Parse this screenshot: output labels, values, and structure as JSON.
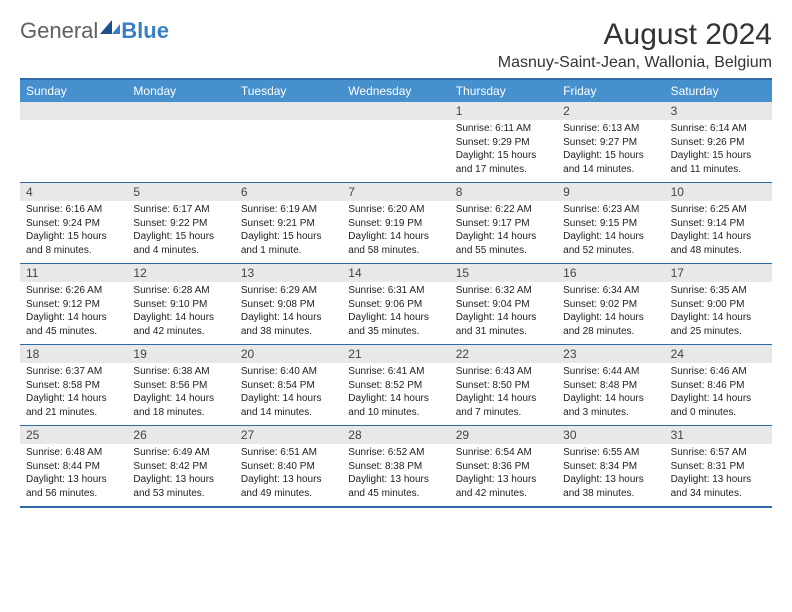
{
  "brand": {
    "part1": "General",
    "part2": "Blue"
  },
  "title": "August 2024",
  "location": "Masnuy-Saint-Jean, Wallonia, Belgium",
  "colors": {
    "header_bg": "#4690ce",
    "border": "#2f6aa8",
    "daynum_bg": "#e8e8e8",
    "text": "#222222"
  },
  "daynames": [
    "Sunday",
    "Monday",
    "Tuesday",
    "Wednesday",
    "Thursday",
    "Friday",
    "Saturday"
  ],
  "weeks": [
    [
      {
        "n": "",
        "sr": "",
        "ss": "",
        "dl": ""
      },
      {
        "n": "",
        "sr": "",
        "ss": "",
        "dl": ""
      },
      {
        "n": "",
        "sr": "",
        "ss": "",
        "dl": ""
      },
      {
        "n": "",
        "sr": "",
        "ss": "",
        "dl": ""
      },
      {
        "n": "1",
        "sr": "Sunrise: 6:11 AM",
        "ss": "Sunset: 9:29 PM",
        "dl": "Daylight: 15 hours and 17 minutes."
      },
      {
        "n": "2",
        "sr": "Sunrise: 6:13 AM",
        "ss": "Sunset: 9:27 PM",
        "dl": "Daylight: 15 hours and 14 minutes."
      },
      {
        "n": "3",
        "sr": "Sunrise: 6:14 AM",
        "ss": "Sunset: 9:26 PM",
        "dl": "Daylight: 15 hours and 11 minutes."
      }
    ],
    [
      {
        "n": "4",
        "sr": "Sunrise: 6:16 AM",
        "ss": "Sunset: 9:24 PM",
        "dl": "Daylight: 15 hours and 8 minutes."
      },
      {
        "n": "5",
        "sr": "Sunrise: 6:17 AM",
        "ss": "Sunset: 9:22 PM",
        "dl": "Daylight: 15 hours and 4 minutes."
      },
      {
        "n": "6",
        "sr": "Sunrise: 6:19 AM",
        "ss": "Sunset: 9:21 PM",
        "dl": "Daylight: 15 hours and 1 minute."
      },
      {
        "n": "7",
        "sr": "Sunrise: 6:20 AM",
        "ss": "Sunset: 9:19 PM",
        "dl": "Daylight: 14 hours and 58 minutes."
      },
      {
        "n": "8",
        "sr": "Sunrise: 6:22 AM",
        "ss": "Sunset: 9:17 PM",
        "dl": "Daylight: 14 hours and 55 minutes."
      },
      {
        "n": "9",
        "sr": "Sunrise: 6:23 AM",
        "ss": "Sunset: 9:15 PM",
        "dl": "Daylight: 14 hours and 52 minutes."
      },
      {
        "n": "10",
        "sr": "Sunrise: 6:25 AM",
        "ss": "Sunset: 9:14 PM",
        "dl": "Daylight: 14 hours and 48 minutes."
      }
    ],
    [
      {
        "n": "11",
        "sr": "Sunrise: 6:26 AM",
        "ss": "Sunset: 9:12 PM",
        "dl": "Daylight: 14 hours and 45 minutes."
      },
      {
        "n": "12",
        "sr": "Sunrise: 6:28 AM",
        "ss": "Sunset: 9:10 PM",
        "dl": "Daylight: 14 hours and 42 minutes."
      },
      {
        "n": "13",
        "sr": "Sunrise: 6:29 AM",
        "ss": "Sunset: 9:08 PM",
        "dl": "Daylight: 14 hours and 38 minutes."
      },
      {
        "n": "14",
        "sr": "Sunrise: 6:31 AM",
        "ss": "Sunset: 9:06 PM",
        "dl": "Daylight: 14 hours and 35 minutes."
      },
      {
        "n": "15",
        "sr": "Sunrise: 6:32 AM",
        "ss": "Sunset: 9:04 PM",
        "dl": "Daylight: 14 hours and 31 minutes."
      },
      {
        "n": "16",
        "sr": "Sunrise: 6:34 AM",
        "ss": "Sunset: 9:02 PM",
        "dl": "Daylight: 14 hours and 28 minutes."
      },
      {
        "n": "17",
        "sr": "Sunrise: 6:35 AM",
        "ss": "Sunset: 9:00 PM",
        "dl": "Daylight: 14 hours and 25 minutes."
      }
    ],
    [
      {
        "n": "18",
        "sr": "Sunrise: 6:37 AM",
        "ss": "Sunset: 8:58 PM",
        "dl": "Daylight: 14 hours and 21 minutes."
      },
      {
        "n": "19",
        "sr": "Sunrise: 6:38 AM",
        "ss": "Sunset: 8:56 PM",
        "dl": "Daylight: 14 hours and 18 minutes."
      },
      {
        "n": "20",
        "sr": "Sunrise: 6:40 AM",
        "ss": "Sunset: 8:54 PM",
        "dl": "Daylight: 14 hours and 14 minutes."
      },
      {
        "n": "21",
        "sr": "Sunrise: 6:41 AM",
        "ss": "Sunset: 8:52 PM",
        "dl": "Daylight: 14 hours and 10 minutes."
      },
      {
        "n": "22",
        "sr": "Sunrise: 6:43 AM",
        "ss": "Sunset: 8:50 PM",
        "dl": "Daylight: 14 hours and 7 minutes."
      },
      {
        "n": "23",
        "sr": "Sunrise: 6:44 AM",
        "ss": "Sunset: 8:48 PM",
        "dl": "Daylight: 14 hours and 3 minutes."
      },
      {
        "n": "24",
        "sr": "Sunrise: 6:46 AM",
        "ss": "Sunset: 8:46 PM",
        "dl": "Daylight: 14 hours and 0 minutes."
      }
    ],
    [
      {
        "n": "25",
        "sr": "Sunrise: 6:48 AM",
        "ss": "Sunset: 8:44 PM",
        "dl": "Daylight: 13 hours and 56 minutes."
      },
      {
        "n": "26",
        "sr": "Sunrise: 6:49 AM",
        "ss": "Sunset: 8:42 PM",
        "dl": "Daylight: 13 hours and 53 minutes."
      },
      {
        "n": "27",
        "sr": "Sunrise: 6:51 AM",
        "ss": "Sunset: 8:40 PM",
        "dl": "Daylight: 13 hours and 49 minutes."
      },
      {
        "n": "28",
        "sr": "Sunrise: 6:52 AM",
        "ss": "Sunset: 8:38 PM",
        "dl": "Daylight: 13 hours and 45 minutes."
      },
      {
        "n": "29",
        "sr": "Sunrise: 6:54 AM",
        "ss": "Sunset: 8:36 PM",
        "dl": "Daylight: 13 hours and 42 minutes."
      },
      {
        "n": "30",
        "sr": "Sunrise: 6:55 AM",
        "ss": "Sunset: 8:34 PM",
        "dl": "Daylight: 13 hours and 38 minutes."
      },
      {
        "n": "31",
        "sr": "Sunrise: 6:57 AM",
        "ss": "Sunset: 8:31 PM",
        "dl": "Daylight: 13 hours and 34 minutes."
      }
    ]
  ]
}
